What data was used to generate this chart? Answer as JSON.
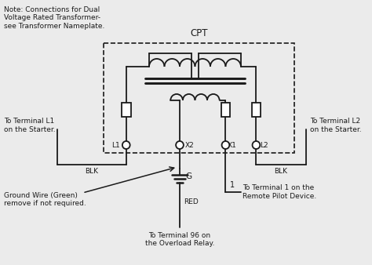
{
  "bg_color": "#ebebeb",
  "line_color": "#1a1a1a",
  "figsize": [
    4.74,
    3.38
  ],
  "dpi": 100,
  "cpt_label": "CPT",
  "note_text": "Note: Connections for Dual\nVoltage Rated Transformer-\nsee Transformer Nameplate.",
  "terminal_L1": "To Terminal L1\non the Starter.",
  "terminal_L2": "To Terminal L2\non the Starter.",
  "terminal_96_label": "RED",
  "terminal_96": "To Terminal 96 on\nthe Overload Relay.",
  "terminal_1": "To Terminal 1 on the\nRemote Pilot Device.",
  "ground_wire": "Ground Wire (Green)\nremove if not required.",
  "blk": "BLK",
  "g_label": "G",
  "one_label": "1"
}
